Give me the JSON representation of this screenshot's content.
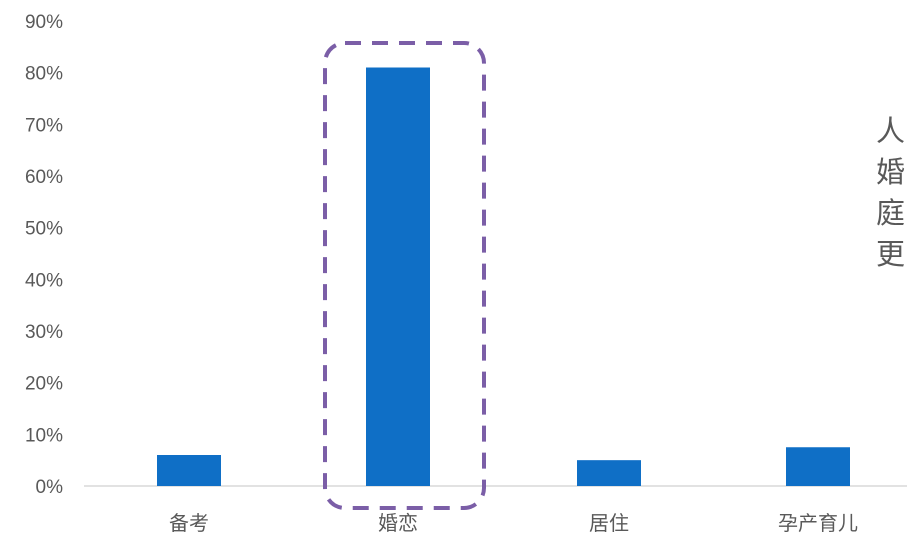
{
  "chart_data": {
    "type": "bar",
    "categories": [
      "备考",
      "婚恋",
      "居住",
      "孕产育儿"
    ],
    "values": [
      6,
      81,
      5,
      7.5
    ],
    "ylim": [
      0,
      90
    ],
    "yticks": [
      "0%",
      "10%",
      "20%",
      "30%",
      "40%",
      "50%",
      "60%",
      "70%",
      "80%",
      "90%"
    ],
    "title": "",
    "xlabel": "",
    "ylabel": "",
    "grid": false,
    "highlight_category": "婚恋",
    "colors": {
      "bar": "#0F6FC6",
      "highlight_box": "#7B5EA7",
      "axis": "#D9D9D9",
      "text": "#595959"
    }
  },
  "side_text": {
    "lines": [
      "人",
      "婚",
      "庭",
      "更"
    ]
  }
}
